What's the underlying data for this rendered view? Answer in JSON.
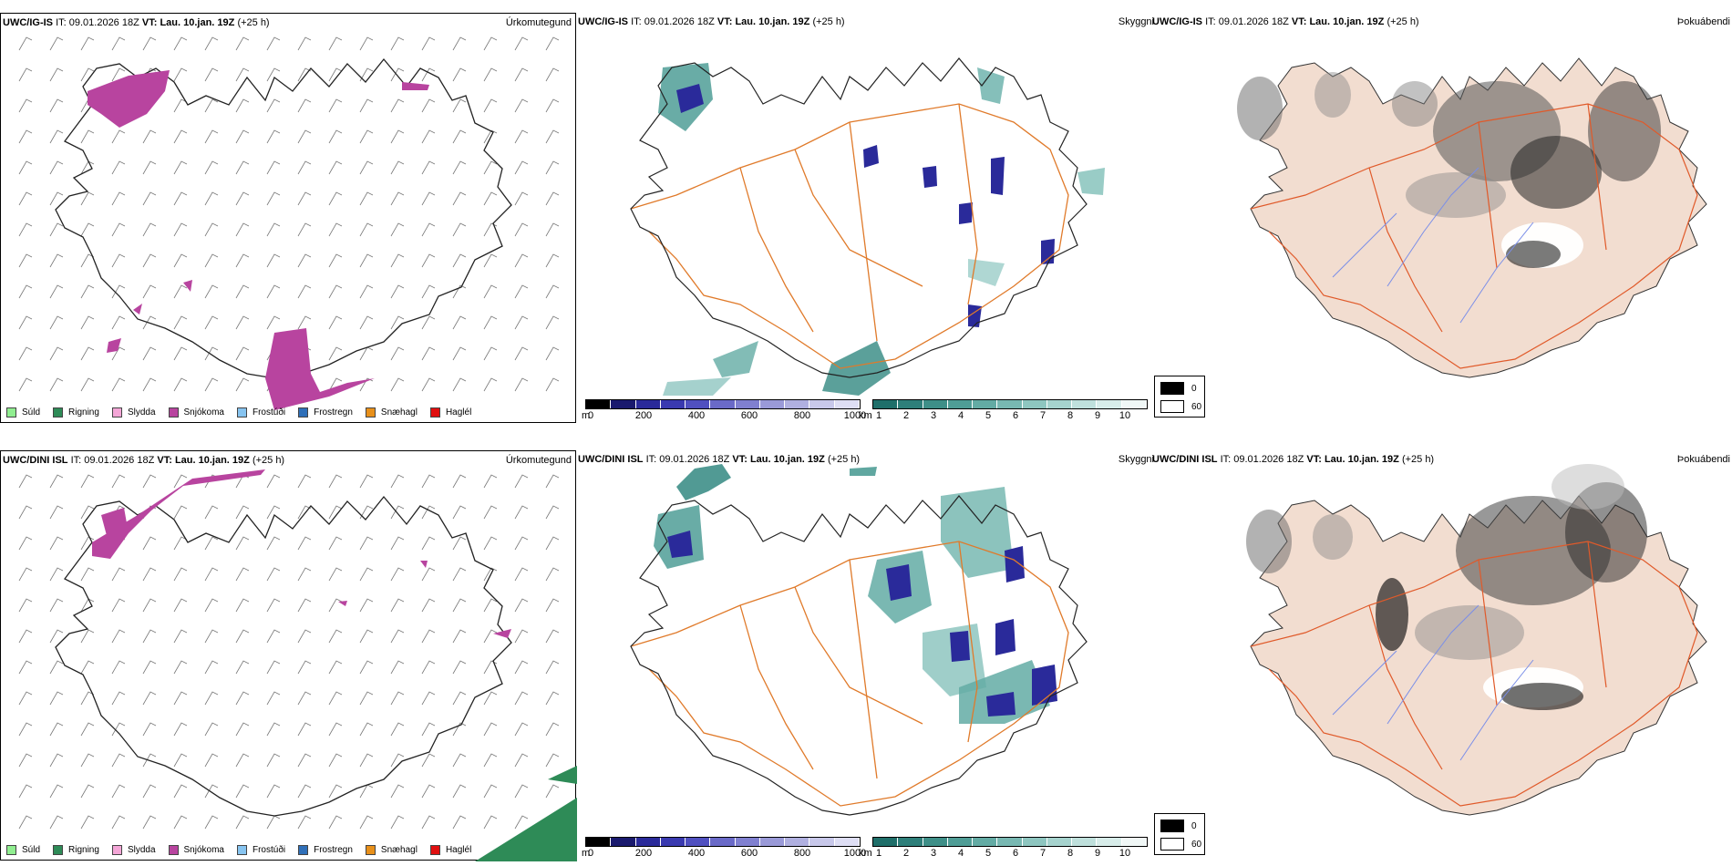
{
  "rows": [
    {
      "model": "UWC/IG-IS",
      "it_label": "IT:",
      "it": "09.01.2026 18Z",
      "vt_label": "VT:",
      "vt": "Lau. 10.jan. 19Z",
      "lead": "(+25 h)"
    },
    {
      "model": "UWC/DINI ISL",
      "it_label": "IT:",
      "it": "09.01.2026 18Z",
      "vt_label": "VT:",
      "vt": "Lau. 10.jan. 19Z",
      "lead": "(+25 h)"
    }
  ],
  "panel_titles": {
    "precip": "Úrkomutegund",
    "visibility": "Skyggni",
    "fog": "Þokuábendi"
  },
  "precip_legend": [
    {
      "label": "Súld",
      "color": "#90ee90"
    },
    {
      "label": "Rigning",
      "color": "#2e8b57"
    },
    {
      "label": "Slydda",
      "color": "#f4a6d7"
    },
    {
      "label": "Snjókoma",
      "color": "#b8449f"
    },
    {
      "label": "Frostúði",
      "color": "#87c4f0"
    },
    {
      "label": "Frostregn",
      "color": "#2f6fb8"
    },
    {
      "label": "Snæhagl",
      "color": "#e8901a"
    },
    {
      "label": "Haglél",
      "color": "#e01010"
    }
  ],
  "visibility_bar": {
    "unit_m": "m",
    "ticks_m": [
      "0",
      "200",
      "400",
      "600",
      "800",
      "1000"
    ],
    "colors_m": [
      "#000000",
      "#1a1a6e",
      "#2a2a9a",
      "#3a3ab0",
      "#5050c0",
      "#6a6ac8",
      "#8080d0",
      "#9a9ad8",
      "#b0b0e0",
      "#c8c8ea",
      "#dedef4"
    ],
    "unit_km": "km",
    "ticks_km": [
      "1",
      "2",
      "3",
      "4",
      "5",
      "6",
      "7",
      "8",
      "9",
      "10"
    ],
    "colors_km": [
      "#1f6f6a",
      "#2e7f7a",
      "#3e8f88",
      "#4f9d96",
      "#63aba4",
      "#78b8b2",
      "#8ec6c0",
      "#a6d3ce",
      "#bfe0dc",
      "#d8edea",
      "#f0f7f6"
    ]
  },
  "fog_legend": [
    {
      "label": "0",
      "color": "#000000"
    },
    {
      "label": "60",
      "color": "#ffffff"
    }
  ],
  "colors": {
    "roads": "#e07a2a",
    "rivers": "#7a8ee8",
    "land_fog": "#f2ddd0"
  }
}
